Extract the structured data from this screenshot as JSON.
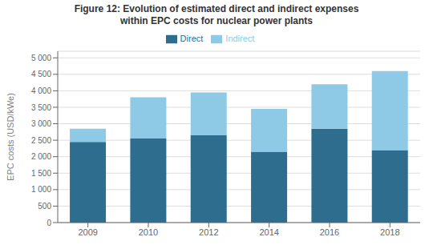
{
  "chart_data": {
    "type": "bar",
    "stacked": true,
    "title": "Figure 12: Evolution of estimated direct and indirect expenses\nwithin EPC costs for nuclear power plants",
    "categories": [
      "2009",
      "2010",
      "2012",
      "2014",
      "2016",
      "2018"
    ],
    "series": [
      {
        "name": "Direct",
        "color": "#2e6d8e",
        "values": [
          2450,
          2550,
          2650,
          2150,
          2850,
          2200
        ]
      },
      {
        "name": "Indirect",
        "color": "#8ecae6",
        "values": [
          400,
          1250,
          1300,
          1300,
          1350,
          2400
        ]
      }
    ],
    "ylabel": "EPC costs (USD/kWe)",
    "ylim": [
      0,
      5200
    ],
    "yticks": [
      0,
      500,
      {
        "value": 1000,
        "label": "1 000"
      },
      {
        "value": 1500,
        "label": "1 500"
      },
      {
        "value": 2000,
        "label": "2 000"
      },
      {
        "value": 2500,
        "label": "2 500"
      },
      {
        "value": 3000,
        "label": "3 000"
      },
      {
        "value": 3500,
        "label": "3 500"
      },
      {
        "value": 4000,
        "label": "4 000"
      },
      {
        "value": 4500,
        "label": "4 500"
      },
      {
        "value": 5000,
        "label": "5 000"
      }
    ],
    "grid": true,
    "legend": "top"
  }
}
